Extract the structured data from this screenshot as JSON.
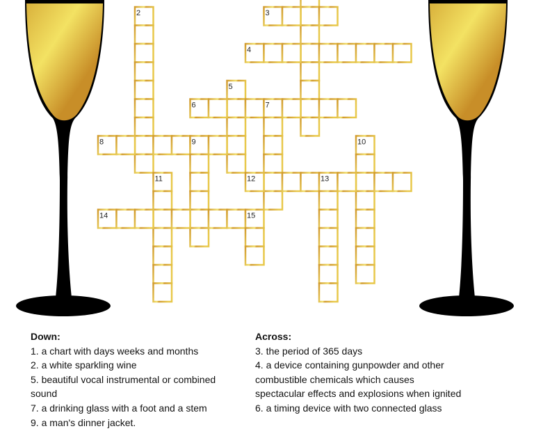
{
  "colors": {
    "cell_border_dark": "#d19a2e",
    "cell_border_light": "#f2e06a",
    "glass_stem": "#000000",
    "champagne_light": "#f3e263",
    "champagne_dark": "#c88e28"
  },
  "icons": {
    "left_glass": "champagne-flute",
    "right_glass": "champagne-flute"
  },
  "numbers": [
    "2",
    "3",
    "4",
    "5",
    "6",
    "7",
    "8",
    "9",
    "10",
    "11",
    "12",
    "13",
    "14",
    "15"
  ],
  "down": {
    "heading": "Down:",
    "clues": [
      "1. a chart with days weeks and months",
      "2. a white sparkling wine",
      "5. beautiful vocal instrumental or combined sound",
      "7. a drinking glass with a foot and a stem",
      "9. a man's dinner jacket."
    ]
  },
  "across": {
    "heading": "Across:",
    "clues": [
      "3. the period of 365 days",
      "4. a device containing gunpowder and other combustible chemicals which causes spectacular effects and explosions when ignited",
      "6. a timing device with two connected glass"
    ]
  }
}
